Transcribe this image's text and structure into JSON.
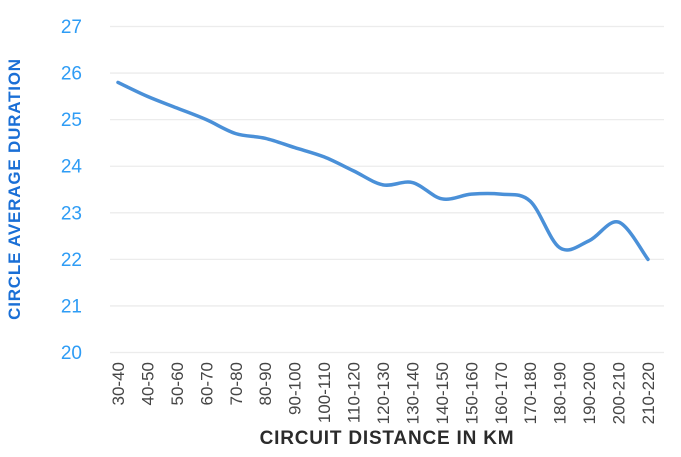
{
  "chart_data": {
    "type": "line",
    "title": "",
    "xlabel": "CIRCUIT DISTANCE IN KM",
    "ylabel": "CIRCLE AVERAGE DURATION",
    "categories": [
      "30-40",
      "40-50",
      "50-60",
      "60-70",
      "70-80",
      "80-90",
      "90-100",
      "100-110",
      "110-120",
      "120-130",
      "130-140",
      "140-150",
      "150-160",
      "160-170",
      "170-180",
      "180-190",
      "190-200",
      "200-210",
      "210-220"
    ],
    "series": [
      {
        "name": "circle-average-duration",
        "values": [
          25.8,
          25.5,
          25.25,
          25.0,
          24.7,
          24.6,
          24.4,
          24.2,
          23.9,
          23.6,
          23.65,
          23.3,
          23.4,
          23.4,
          23.25,
          22.25,
          22.4,
          22.8,
          22.0
        ]
      }
    ],
    "ylim": [
      20,
      27
    ],
    "y_ticks": [
      20,
      21,
      22,
      23,
      24,
      25,
      26,
      27
    ],
    "grid": "horizontal",
    "legend_position": "none",
    "line_style": "smooth",
    "colors": {
      "line": "#4a90d8",
      "grid": "#ececec",
      "y_tick_labels": "#2e9cf5",
      "y_axis_title": "#1a6fd6",
      "x_tick_labels": "#454545",
      "x_axis_title": "#2b2b2b",
      "background": "#ffffff"
    }
  }
}
